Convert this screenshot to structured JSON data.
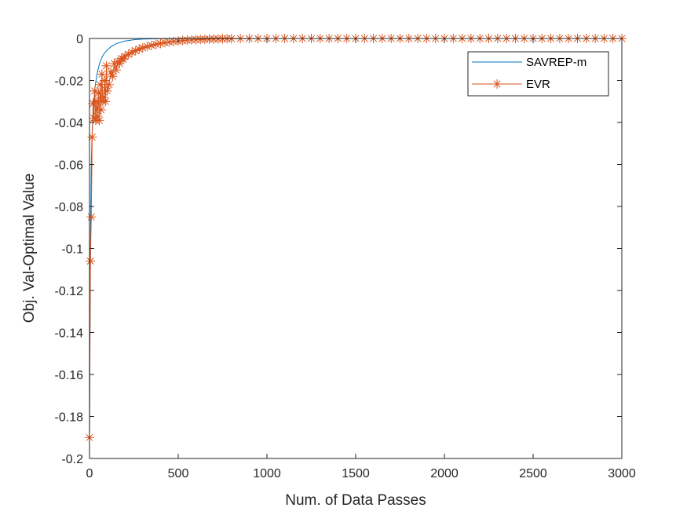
{
  "chart_data": {
    "type": "line",
    "xlabel": "Num. of Data Passes",
    "ylabel": "Obj. Val-Optimal Value",
    "xlim": [
      0,
      3000
    ],
    "ylim": [
      -0.2,
      0
    ],
    "xticks": [
      0,
      500,
      1000,
      1500,
      2000,
      2500,
      3000
    ],
    "xtick_labels": [
      "0",
      "500",
      "1000",
      "1500",
      "2000",
      "2500",
      "3000"
    ],
    "yticks": [
      0,
      -0.02,
      -0.04,
      -0.06,
      -0.08,
      -0.1,
      -0.12,
      -0.14,
      -0.16,
      -0.18,
      -0.2
    ],
    "ytick_labels": [
      "0",
      "-0.02",
      "-0.04",
      "-0.06",
      "-0.08",
      "-0.1",
      "-0.12",
      "-0.14",
      "-0.16",
      "-0.18",
      "-0.2"
    ],
    "grid": false,
    "legend_position": "top-right",
    "series": [
      {
        "name": "SAVREP-m",
        "color": "#0072BD",
        "marker": "none",
        "x": [
          0,
          5,
          10,
          15,
          20,
          30,
          40,
          50,
          60,
          70,
          80,
          100,
          120,
          150,
          200,
          250,
          300,
          400,
          500,
          700,
          1000,
          3000
        ],
        "y": [
          -0.19,
          -0.1,
          -0.06,
          -0.045,
          -0.035,
          -0.024,
          -0.018,
          -0.014,
          -0.011,
          -0.009,
          -0.0075,
          -0.0055,
          -0.004,
          -0.0025,
          -0.0012,
          -0.0006,
          -0.0003,
          -0.0001,
          0,
          0,
          0,
          0
        ]
      },
      {
        "name": "EVR",
        "color": "#D95319",
        "marker": "asterisk",
        "x": [
          0,
          5,
          10,
          15,
          20,
          25,
          30,
          35,
          40,
          45,
          50,
          55,
          60,
          65,
          70,
          75,
          80,
          85,
          90,
          95,
          100,
          110,
          120,
          130,
          140,
          150,
          160,
          170,
          180,
          190,
          200,
          220,
          240,
          260,
          280,
          300,
          325,
          350,
          375,
          400,
          425,
          450,
          475,
          500,
          525,
          550,
          575,
          600,
          625,
          650,
          675,
          700,
          725,
          750,
          775,
          800,
          850,
          900,
          950,
          1000,
          1050,
          1100,
          1150,
          1200,
          1250,
          1300,
          1350,
          1400,
          1450,
          1500,
          1550,
          1600,
          1650,
          1700,
          1750,
          1800,
          1850,
          1900,
          1950,
          2000,
          2050,
          2100,
          2150,
          2200,
          2250,
          2300,
          2350,
          2400,
          2450,
          2500,
          2550,
          2600,
          2650,
          2700,
          2750,
          2800,
          2850,
          2900,
          2950,
          3000
        ],
        "y": [
          -0.19,
          -0.106,
          -0.085,
          -0.047,
          -0.031,
          -0.038,
          -0.025,
          -0.039,
          -0.03,
          -0.037,
          -0.026,
          -0.039,
          -0.022,
          -0.034,
          -0.017,
          -0.03,
          -0.028,
          -0.02,
          -0.03,
          -0.013,
          -0.025,
          -0.022,
          -0.016,
          -0.018,
          -0.012,
          -0.015,
          -0.011,
          -0.012,
          -0.0095,
          -0.01,
          -0.0085,
          -0.0075,
          -0.0065,
          -0.0058,
          -0.005,
          -0.0045,
          -0.0038,
          -0.0033,
          -0.0028,
          -0.0024,
          -0.002,
          -0.0017,
          -0.0014,
          -0.0012,
          -0.001,
          -0.0008,
          -0.0007,
          -0.0006,
          -0.0005,
          -0.0004,
          -0.0003,
          -0.00025,
          -0.0002,
          -0.00015,
          -0.0001,
          -0.0001,
          -5e-05,
          -3e-05,
          -2e-05,
          -1e-05,
          0,
          0,
          0,
          0,
          0,
          0,
          0,
          0,
          0,
          0,
          0,
          0,
          0,
          0,
          0,
          0,
          0,
          0,
          0,
          0,
          0,
          0,
          0,
          0,
          0,
          0,
          0,
          0,
          0,
          0,
          0,
          0,
          0,
          0,
          0,
          0,
          0,
          0,
          0,
          0
        ]
      }
    ]
  }
}
